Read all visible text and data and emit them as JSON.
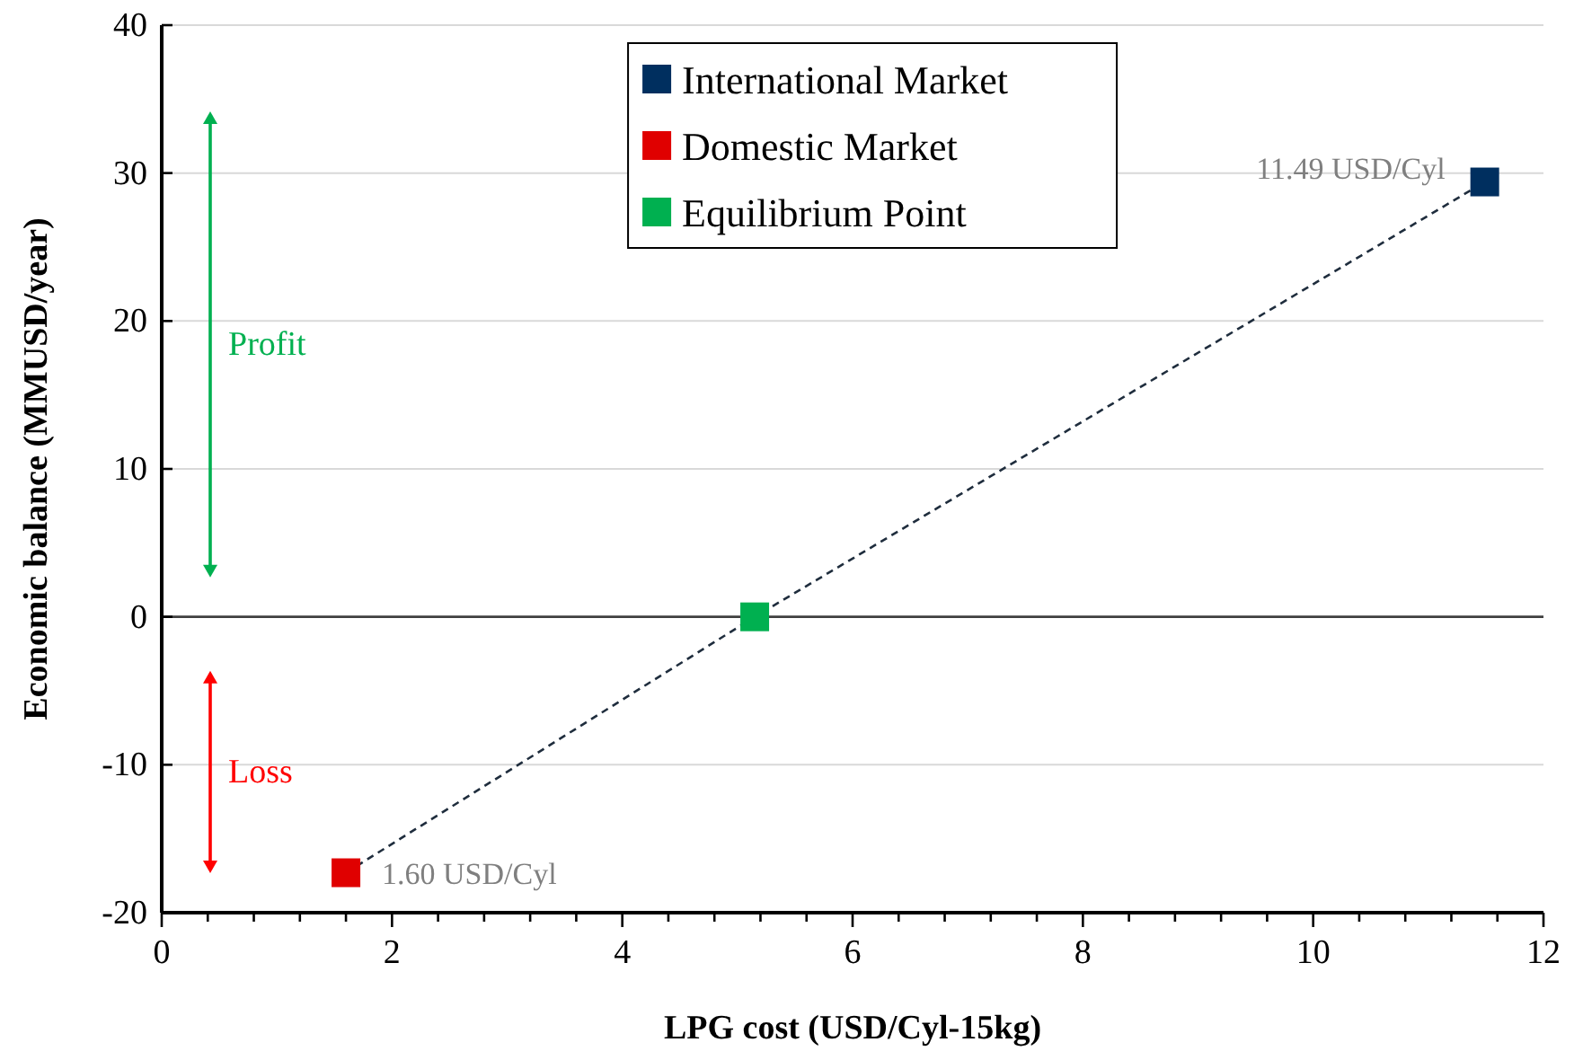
{
  "chart_data": {
    "type": "scatter",
    "xlabel": "LPG cost (USD/Cyl-15kg)",
    "ylabel": "Economic balance (MMUSD/year)",
    "xlim": [
      0,
      12
    ],
    "ylim": [
      -20,
      40
    ],
    "xticks": [
      0,
      {
        "value": 0.4,
        "label": null
      },
      {
        "value": 0.8,
        "label": null
      },
      {
        "value": 1.2,
        "label": null
      },
      {
        "value": 1.6,
        "label": null
      },
      2,
      {
        "value": 2.4,
        "label": null
      },
      {
        "value": 2.8,
        "label": null
      },
      {
        "value": 3.2,
        "label": null
      },
      {
        "value": 3.6,
        "label": null
      },
      4,
      {
        "value": 4.4,
        "label": null
      },
      {
        "value": 4.8,
        "label": null
      },
      {
        "value": 5.2,
        "label": null
      },
      {
        "value": 5.6,
        "label": null
      },
      6,
      {
        "value": 6.4,
        "label": null
      },
      {
        "value": 6.8,
        "label": null
      },
      {
        "value": 7.2,
        "label": null
      },
      {
        "value": 7.6,
        "label": null
      },
      8,
      {
        "value": 8.4,
        "label": null
      },
      {
        "value": 8.8,
        "label": null
      },
      {
        "value": 9.2,
        "label": null
      },
      {
        "value": 9.6,
        "label": null
      },
      10,
      {
        "value": 10.4,
        "label": null
      },
      {
        "value": 10.8,
        "label": null
      },
      {
        "value": 11.2,
        "label": null
      },
      {
        "value": 11.6,
        "label": null
      },
      12
    ],
    "yticks": [
      -20,
      -10,
      0,
      10,
      20,
      30,
      40
    ],
    "grid": "y",
    "legend": "top",
    "marker": "square",
    "ref_lines": [
      {
        "axis": "y",
        "value": 0,
        "color": "#404040"
      }
    ],
    "series": [
      {
        "type": "line",
        "color": "#1f2d3d",
        "line_style": "dashed",
        "marker": "none",
        "x": [
          1.6,
          5.15,
          11.49
        ],
        "values": [
          -17.3,
          0,
          29.4
        ]
      },
      {
        "name": "International Market",
        "color": "#002f5f",
        "x": [
          11.49
        ],
        "values": [
          29.4
        ]
      },
      {
        "name": "Domestic Market",
        "color": "#e00000",
        "x": [
          1.6
        ],
        "values": [
          -17.3
        ]
      },
      {
        "name": "Equilibrium Point",
        "color": "#00b050",
        "x": [
          5.15
        ],
        "values": [
          0
        ]
      }
    ],
    "annotations": [
      {
        "text": "11.49 USD/Cyl",
        "x": 11.49,
        "y": 29.4
      },
      {
        "text": "1.60 USD/Cyl",
        "x": 1.6,
        "y": -17.3
      },
      "Profit",
      "Loss"
    ]
  }
}
